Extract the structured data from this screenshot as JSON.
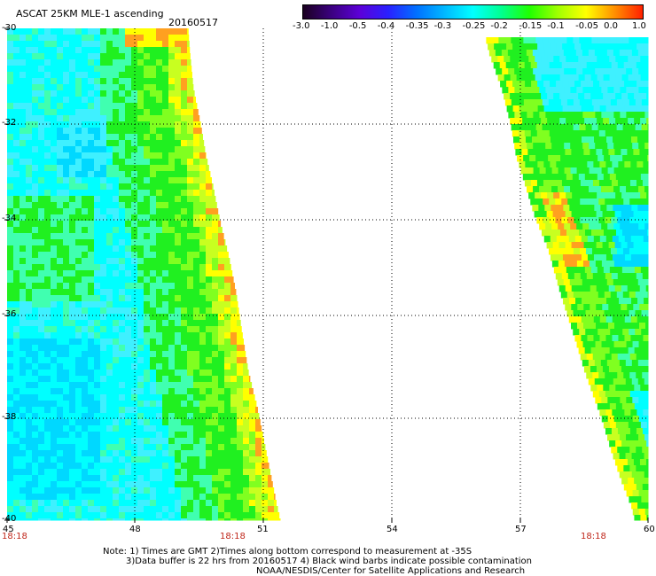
{
  "header": {
    "title": "ASCAT 25KM MLE-1 ascending",
    "date": "20160517"
  },
  "colorbar": {
    "labels": [
      "-3.0",
      "-1.0",
      "-0.5",
      "-0.4",
      "-0.35",
      "-0.3",
      "-0.25",
      "-0.2",
      "-0.15",
      "-0.1",
      "-0.05",
      "0.0",
      "1.0"
    ],
    "colors": [
      "#1a0020",
      "#3b0080",
      "#5c00d8",
      "#2a20ff",
      "#0070ff",
      "#00b8ff",
      "#00ffff",
      "#00ff90",
      "#20ff00",
      "#a0ff00",
      "#ffff00",
      "#ff9000",
      "#ff2000"
    ]
  },
  "axes": {
    "x_ticks": [
      "45",
      "48",
      "51",
      "54",
      "57",
      "60"
    ],
    "y_ticks": [
      "-30",
      "-32",
      "-34",
      "-36",
      "-38",
      "-40"
    ],
    "time_labels": [
      "18:18",
      "18:18",
      "18:18"
    ]
  },
  "palette": {
    "cyan": "#00ffff",
    "light_cyan": "#3ff0ff",
    "sky": "#00d8ff",
    "aqua_green": "#40ffb0",
    "green": "#20f020",
    "lime": "#80ff20",
    "yellow_green": "#c8ff20",
    "yellow": "#ffff00",
    "orange": "#ffa020"
  },
  "notes": {
    "line1": "Note: 1) Times are GMT 2)Times along bottom correspond to measurement at -35S",
    "line2": "3)Data buffer is 22 hrs from 20160517 4) Black wind barbs indicate possible contamination",
    "line3": "NOAA/NESDIS/Center for Satellite Applications and Research"
  }
}
